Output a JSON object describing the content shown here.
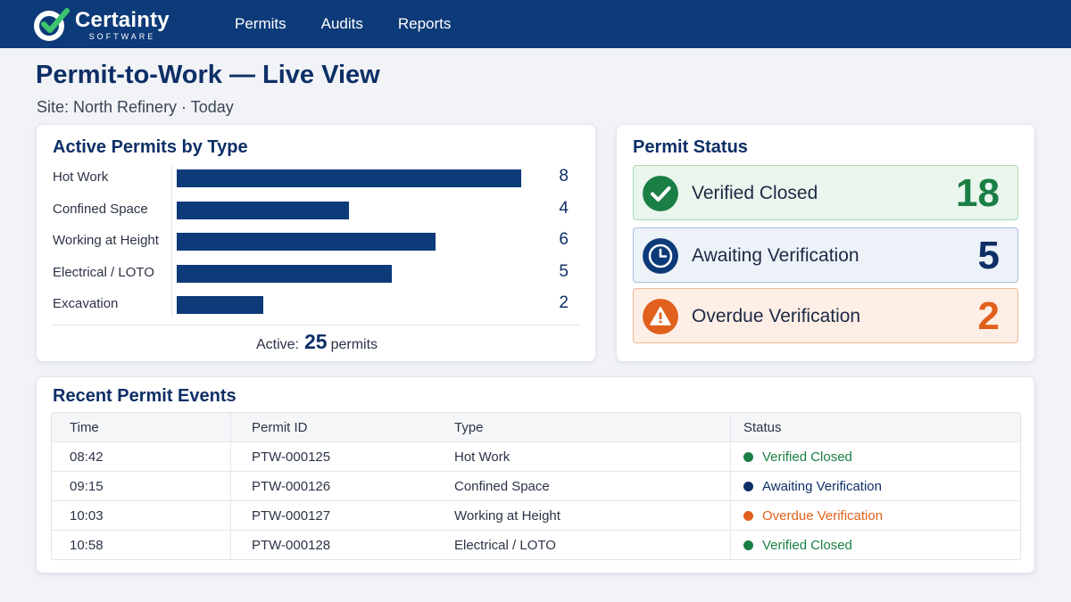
{
  "header": {
    "brand_name": "Certainty",
    "brand_sub": "SOFTWARE",
    "nav": [
      "Permits",
      "Audits",
      "Reports"
    ],
    "colors": {
      "bar": "#0d3a78",
      "logo_check": "#3cc46b"
    }
  },
  "page": {
    "title": "Permit-to-Work — Live View",
    "subtitle": "Site: North Refinery · Today"
  },
  "permits_by_type": {
    "title": "Active Permits by Type",
    "total_label": "Active:",
    "total": "25",
    "total_unit": "permits"
  },
  "chart_data": {
    "type": "bar",
    "orientation": "horizontal",
    "title": "Active Permits by Type",
    "categories": [
      "Hot Work",
      "Confined Space",
      "Working at Height",
      "Electrical / LOTO",
      "Excavation"
    ],
    "values": [
      8,
      4,
      6,
      5,
      2
    ],
    "xlim": [
      0,
      8
    ],
    "grid": false,
    "color": "#0d3a78"
  },
  "status": {
    "title": "Permit Status",
    "tiles": [
      {
        "label": "Verified Closed",
        "count": "18",
        "icon": "check-icon",
        "color": "#1a7f45"
      },
      {
        "label": "Awaiting Verification",
        "count": "5",
        "icon": "clock-icon",
        "color": "#0d2f66"
      },
      {
        "label": "Overdue Verification",
        "count": "2",
        "icon": "warning-icon",
        "color": "#e0601c"
      }
    ]
  },
  "events": {
    "title": "Recent Permit Events",
    "columns": [
      "Time",
      "Permit ID",
      "Type",
      "Status"
    ],
    "rows": [
      {
        "time": "08:42",
        "id": "PTW-000125",
        "type": "Hot Work",
        "status": "Verified Closed",
        "status_color": "#1a7f45"
      },
      {
        "time": "09:15",
        "id": "PTW-000126",
        "type": "Confined Space",
        "status": "Awaiting Verification",
        "status_color": "#0d2f66"
      },
      {
        "time": "10:03",
        "id": "PTW-000127",
        "type": "Working at Height",
        "status": "Overdue Verification",
        "status_color": "#e0601c"
      },
      {
        "time": "10:58",
        "id": "PTW-000128",
        "type": "Electrical / LOTO",
        "status": "Verified Closed",
        "status_color": "#1a7f45"
      }
    ]
  }
}
